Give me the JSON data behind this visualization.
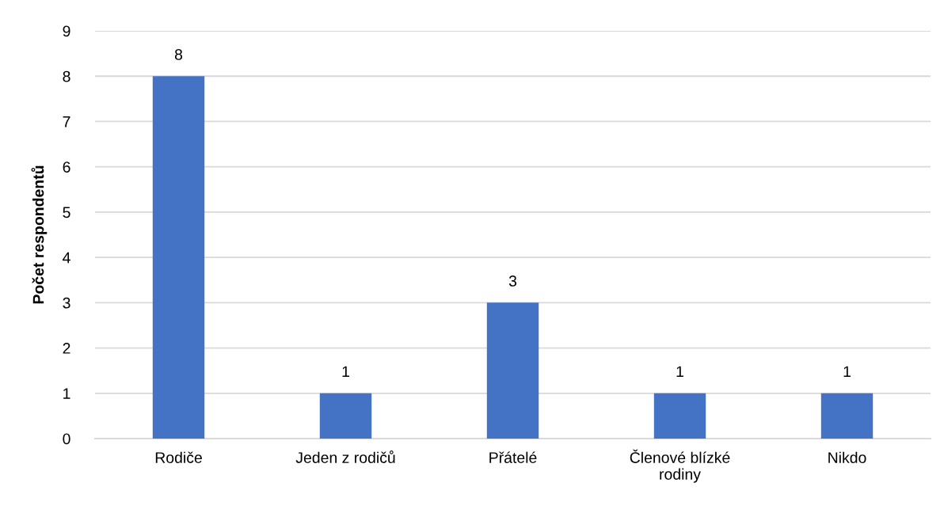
{
  "chart_data": {
    "type": "bar",
    "ylabel": "Počet respondentů",
    "categories": [
      "Rodiče",
      "Jeden z rodičů",
      "Přátelé",
      "Členové blízké rodiny",
      "Nikdo"
    ],
    "values": [
      8,
      1,
      3,
      1,
      1
    ],
    "color": "#4472c4",
    "ylim": [
      0,
      9
    ],
    "yticks": [
      0,
      1,
      2,
      3,
      4,
      5,
      6,
      7,
      8,
      9
    ],
    "grid": "y",
    "data_labels": true
  }
}
